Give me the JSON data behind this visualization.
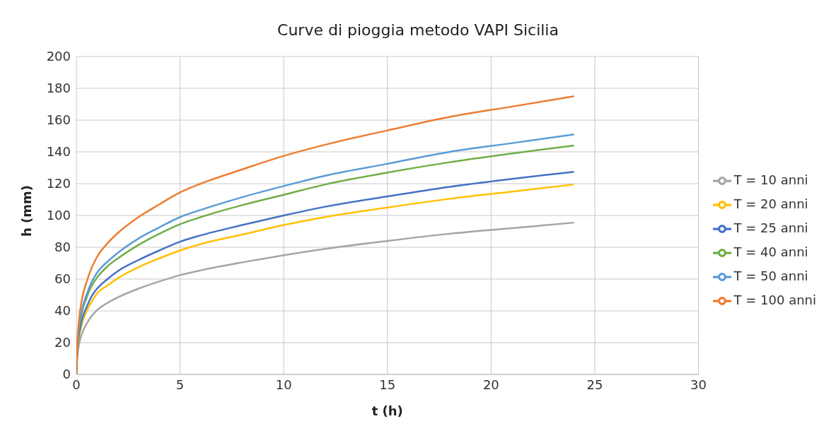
{
  "chart_data": {
    "type": "line",
    "title": "Curve di pioggia metodo VAPI Sicilia",
    "xlabel": "t (h)",
    "ylabel": "h (mm)",
    "x": [
      0,
      0.05,
      0.1,
      0.25,
      0.5,
      0.75,
      1,
      1.5,
      2,
      3,
      4,
      5,
      6,
      8,
      10,
      12,
      15,
      18,
      21,
      24
    ],
    "series": [
      {
        "name": "T = 10 anni",
        "color": "#a5a5a5",
        "values": [
          0,
          12,
          17,
          25,
          32,
          37,
          40.5,
          45,
          48.5,
          54,
          58.5,
          62.5,
          65.5,
          70.5,
          75,
          79,
          84,
          88.5,
          92,
          95.5
        ]
      },
      {
        "name": "T = 20 anni",
        "color": "#ffc000",
        "values": [
          0,
          15,
          21,
          31,
          40,
          46,
          51,
          56,
          60.5,
          67.5,
          73,
          78,
          82,
          88,
          94,
          99,
          105,
          110.5,
          115,
          119.5
        ]
      },
      {
        "name": "T = 25 anni",
        "color": "#4472c4",
        "values": [
          0,
          16,
          22.5,
          33.5,
          42.5,
          49.5,
          54,
          60,
          65,
          72,
          78,
          83.5,
          87.5,
          94,
          100,
          105.5,
          112,
          118,
          123,
          127.5
        ]
      },
      {
        "name": "T = 40 anni",
        "color": "#70ad47",
        "values": [
          0,
          18,
          25.5,
          38,
          48.5,
          56,
          61,
          68,
          73,
          81.5,
          88.5,
          94.5,
          99,
          106.5,
          113,
          119.5,
          127,
          133.5,
          139,
          144
        ]
      },
      {
        "name": "T = 50 anni",
        "color": "#5b9bd5",
        "values": [
          0,
          19,
          27,
          39.5,
          50.5,
          58.5,
          64,
          71,
          76.5,
          85.5,
          92.5,
          99,
          103.5,
          111.5,
          118.5,
          125,
          132.5,
          140,
          145.5,
          151
        ]
      },
      {
        "name": "T = 100 anni",
        "color": "#ed7d31",
        "values": [
          0,
          22,
          31,
          46,
          58.5,
          67.5,
          74,
          82.5,
          89,
          99,
          107,
          114.5,
          120,
          129,
          137.5,
          144.5,
          153.5,
          162,
          168.5,
          175
        ]
      }
    ],
    "xlim": [
      0,
      30
    ],
    "xticks": [
      0,
      5,
      10,
      15,
      20,
      25,
      30
    ],
    "ylim": [
      0,
      200
    ],
    "yticks": [
      0,
      20,
      40,
      60,
      80,
      100,
      120,
      140,
      160,
      180,
      200
    ],
    "grid": true,
    "legend": "right",
    "marker": "none",
    "line_style": "solid"
  }
}
